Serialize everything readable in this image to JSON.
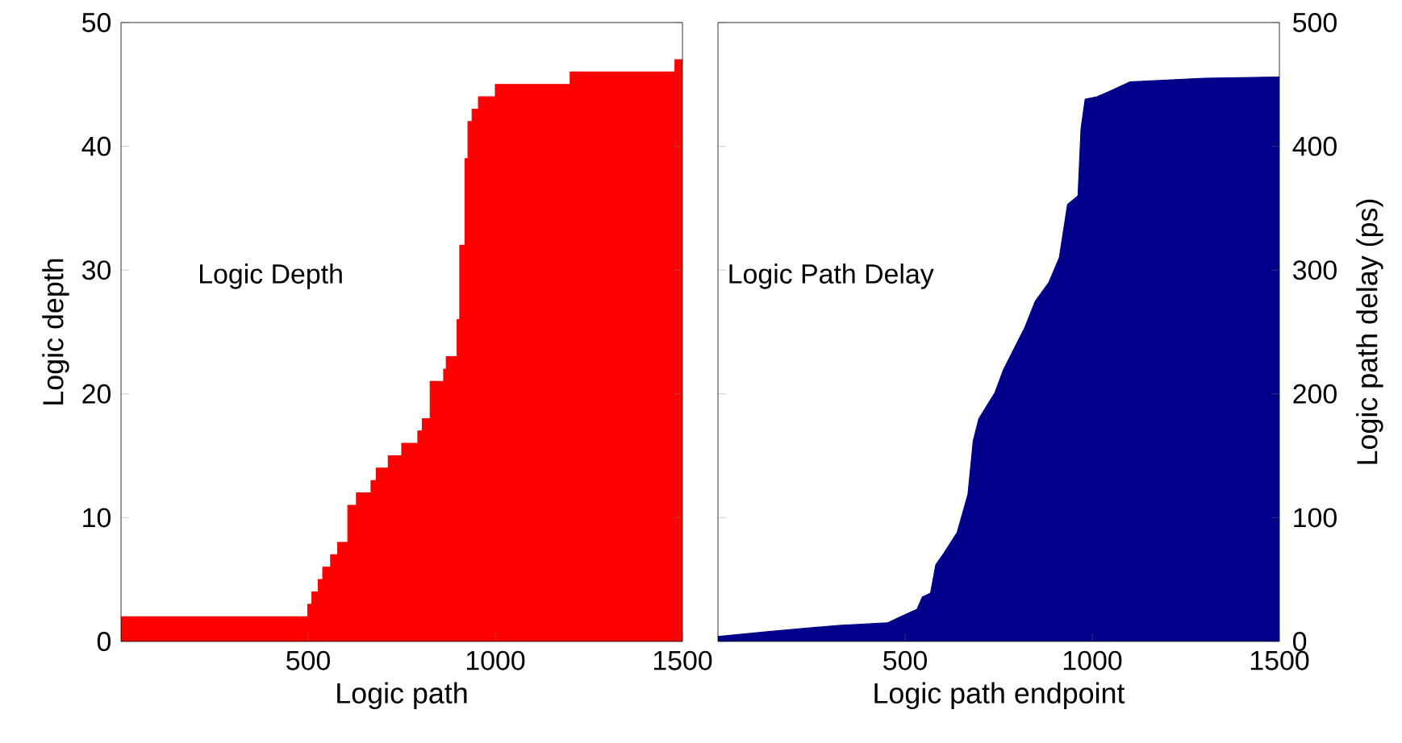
{
  "chart_data": [
    {
      "type": "area",
      "xlabel": "Logic path",
      "ylabel": "Logic depth",
      "annotations": [
        "Logic Depth"
      ],
      "xlim": [
        0,
        1500
      ],
      "xticks": [
        500,
        1000,
        1500
      ],
      "ylim": [
        0,
        50
      ],
      "yticks": [
        0,
        10,
        20,
        30,
        40,
        50
      ],
      "series": [
        {
          "color": "#ff0000",
          "x": [
            0,
            499,
            499,
            510,
            510,
            527,
            527,
            539,
            539,
            560,
            560,
            579,
            579,
            606,
            606,
            629,
            629,
            668,
            668,
            682,
            682,
            714,
            714,
            750,
            750,
            793,
            793,
            805,
            805,
            826,
            826,
            862,
            862,
            869,
            869,
            898,
            898,
            905,
            905,
            919,
            919,
            927,
            927,
            938,
            938,
            955,
            955,
            1000,
            1000,
            1200,
            1200,
            1480,
            1480,
            1500
          ],
          "values": [
            2,
            2,
            3,
            3,
            4,
            4,
            5,
            5,
            6,
            6,
            7,
            7,
            8,
            8,
            11,
            11,
            12,
            12,
            13,
            13,
            14,
            14,
            15,
            15,
            16,
            16,
            17,
            17,
            18,
            18,
            21,
            21,
            22,
            22,
            23,
            23,
            26,
            26,
            32,
            32,
            39,
            39,
            42,
            42,
            43,
            43,
            44,
            44,
            45,
            45,
            46,
            46,
            47,
            47
          ]
        }
      ]
    },
    {
      "type": "area",
      "xlabel": "Logic path endpoint",
      "y2label": "Logic path delay (ps)",
      "annotations": [
        "Logic Path Delay"
      ],
      "xlim": [
        0,
        1500
      ],
      "xticks": [
        500,
        1000,
        1500
      ],
      "y2lim": [
        0,
        500
      ],
      "y2ticks": [
        0,
        100,
        200,
        300,
        400,
        500
      ],
      "series": [
        {
          "color": "#00008b",
          "axis": "y2",
          "x": [
            0,
            137,
            323,
            453,
            481,
            532,
            546,
            568,
            582,
            603,
            639,
            668,
            682,
            697,
            740,
            762,
            797,
            819,
            848,
            884,
            912,
            934,
            962,
            970,
            981,
            1013,
            1050,
            1100,
            1300,
            1500
          ],
          "values": [
            4,
            8,
            13,
            15,
            19,
            26,
            36,
            39,
            62,
            71,
            88,
            119,
            162,
            180,
            201,
            219,
            240,
            253,
            275,
            290,
            310,
            353,
            360,
            414,
            438,
            440,
            445,
            452,
            455,
            456
          ]
        }
      ]
    }
  ]
}
